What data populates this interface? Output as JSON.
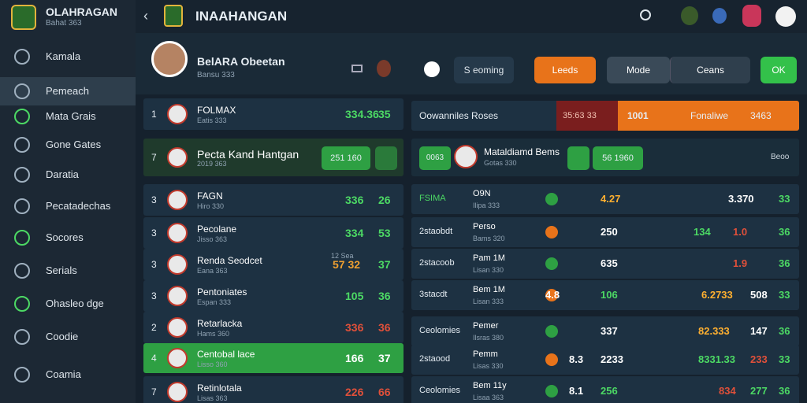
{
  "sidebar": {
    "brand": "OLAHRAGAN",
    "brand_sub": "Bahat 363",
    "items": [
      "Kamala",
      "Pemeach",
      "Mata Grais",
      "Gone Gates",
      "Daratia",
      "Pecatadechas",
      "Socores",
      "Serials",
      "Ohasleo dge",
      "Coodie",
      "Coamia"
    ]
  },
  "topbar": {
    "title": "INAAHANGAN"
  },
  "profile": {
    "name": "BelARA Obeetan",
    "sub": "Bansu 333",
    "upcoming": "S eoming",
    "leeds": "Leeds",
    "mode": "Mode",
    "ceans": "Ceans",
    "ok": "OK"
  },
  "left_list": {
    "rows": [
      {
        "rank": "1",
        "name": "FOLMAX",
        "sub": "Eatis 333",
        "a": "334.36",
        "b": "35",
        "color": "#4cd964"
      },
      {
        "rank": "7",
        "name": "Pecta Kand Hantgan",
        "sub": "2019 363",
        "a": "251 160",
        "color": "#4cd964"
      },
      {
        "rank": "3",
        "name": "FAGN",
        "sub": "Hiro 330",
        "a": "336",
        "b": "26",
        "color": "#4cd964"
      },
      {
        "rank": "3",
        "name": "Pecolane",
        "sub": "Jisso 363",
        "a": "334",
        "b": "53",
        "color": "#4cd964"
      },
      {
        "rank": "3",
        "name": "Renda Seodcet",
        "sub": "Eana 363",
        "a": "57 32",
        "b": "37",
        "note": "12 Sea",
        "color": "#f0a030"
      },
      {
        "rank": "3",
        "name": "Pentoniates",
        "sub": "Espan 333",
        "a": "105",
        "b": "36",
        "color": "#4cd964"
      },
      {
        "rank": "2",
        "name": "Retarlacka",
        "sub": "Hams 360",
        "a": "336",
        "b": "36",
        "color": "#e0503a"
      },
      {
        "rank": "4",
        "name": "Centobal lace",
        "sub": "Lisso 360",
        "a": "166",
        "b": "37",
        "color": "#ffffff"
      },
      {
        "rank": "7",
        "name": "Retinlotala",
        "sub": "Lisas 363",
        "a": "226",
        "b": "66",
        "color": "#e0503a"
      }
    ]
  },
  "right_panel": {
    "header": "Oowanniles Roses",
    "score": "35:63 33",
    "code": "1001",
    "final": "Fonaliwe",
    "total": "3463",
    "featured": {
      "tag": "0063",
      "name": "Mataldiamd Bems",
      "sub": "Gotas 330",
      "value": "56 1960",
      "extra": "Beoo"
    },
    "rows": [
      {
        "label": "FSIMA",
        "name": "O9N",
        "sub": "Ilipa 333",
        "cells": [
          "4.27",
          "3.370",
          "33"
        ]
      },
      {
        "label": "2staobdt",
        "name": "Perso",
        "sub": "Bams 320",
        "cells": [
          "250",
          "134",
          "1.0",
          "36"
        ]
      },
      {
        "label": "2stacoob",
        "name": "Pam 1M",
        "sub": "Lisan 330",
        "cells": [
          "635",
          "1.9",
          "36"
        ]
      },
      {
        "label": "3stacdt",
        "name": "Bem 1M",
        "sub": "Lisan 333",
        "cells": [
          "4.8",
          "106",
          "6.2733",
          "508",
          "33"
        ]
      },
      {
        "label": "Ceolomies",
        "name": "Pemer",
        "sub": "Ilsras 380",
        "cells": [
          "337",
          "82.333",
          "147",
          "36"
        ]
      },
      {
        "label": "2staood",
        "name": "Pemm",
        "sub": "Lisas 330",
        "cells": [
          "8.3",
          "2233",
          "8331.33",
          "233",
          "33"
        ]
      },
      {
        "label": "Ceolomies",
        "name": "Bem 11y",
        "sub": "Lisaa 363",
        "cells": [
          "8.1",
          "256",
          "834",
          "277",
          "36"
        ]
      }
    ]
  }
}
